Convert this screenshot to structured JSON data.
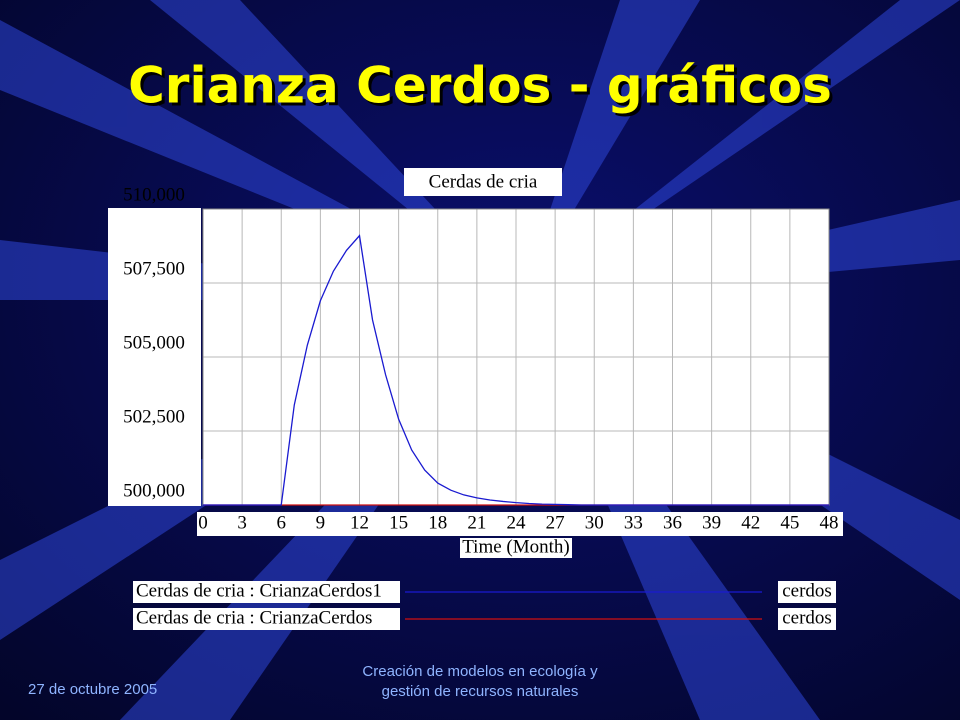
{
  "slide": {
    "title": "Crianza Cerdos - gráficos",
    "footer_date": "27 de octubre 2005",
    "footer_center": [
      "Creación de modelos en ecología y",
      "gestión de recursos naturales"
    ]
  },
  "chart_data": {
    "type": "line",
    "title": "Cerdas de cria",
    "x_label": "Time (Month)",
    "x": [
      0,
      1,
      2,
      3,
      4,
      5,
      6,
      7,
      8,
      9,
      10,
      11,
      12,
      13,
      14,
      15,
      16,
      17,
      18,
      19,
      20,
      21,
      22,
      23,
      24,
      25,
      26,
      27,
      28,
      29,
      30,
      31,
      32,
      33,
      34,
      35,
      36,
      37,
      38,
      39,
      40,
      41,
      42,
      43,
      44,
      45,
      46,
      47,
      48
    ],
    "series": [
      {
        "name": "Cerdas de cria : CrianzaCerdos1",
        "unit": "cerdos",
        "color": "#1a1ad0",
        "values": [
          500000,
          500000,
          500000,
          500000,
          500000,
          500000,
          500000,
          503380,
          505400,
          506900,
          507900,
          508600,
          509100,
          506250,
          504400,
          502900,
          501860,
          501180,
          500740,
          500500,
          500340,
          500240,
          500170,
          500120,
          500080,
          500050,
          500030,
          500020,
          500010,
          500000,
          500000,
          500000,
          500000,
          500000,
          500000,
          500000,
          500000,
          500000,
          500000,
          500000,
          500000,
          500000,
          500000,
          500000,
          500000,
          500000,
          500000,
          500000,
          500000
        ]
      },
      {
        "name": "Cerdas de cria : CrianzaCerdos",
        "unit": "cerdos",
        "color": "#d01010",
        "values": [
          500000,
          500000,
          500000,
          500000,
          500000,
          500000,
          500000,
          500000,
          500000,
          500000,
          500000,
          500000,
          500000,
          500000,
          500000,
          500000,
          500000,
          500000,
          500000,
          500000,
          500000,
          500000,
          500000,
          500000,
          500000,
          500000,
          500000,
          500000,
          500000,
          500000,
          500000,
          500000,
          500000,
          500000,
          500000,
          500000,
          500000,
          500000,
          500000,
          500000,
          500000,
          500000,
          500000,
          500000,
          500000,
          500000,
          500000,
          500000,
          500000
        ]
      }
    ],
    "xlim": [
      0,
      48
    ],
    "xticks": [
      0,
      3,
      6,
      9,
      12,
      15,
      18,
      21,
      24,
      27,
      30,
      33,
      36,
      39,
      42,
      45,
      48
    ],
    "ylim": [
      500000,
      510000
    ],
    "yticks": [
      {
        "value": 500000,
        "label": "500,000"
      },
      {
        "value": 502500,
        "label": "502,500"
      },
      {
        "value": 505000,
        "label": "505,000"
      },
      {
        "value": 507500,
        "label": "507,500"
      },
      {
        "value": 510000,
        "label": "510,000"
      }
    ],
    "grid": true
  }
}
